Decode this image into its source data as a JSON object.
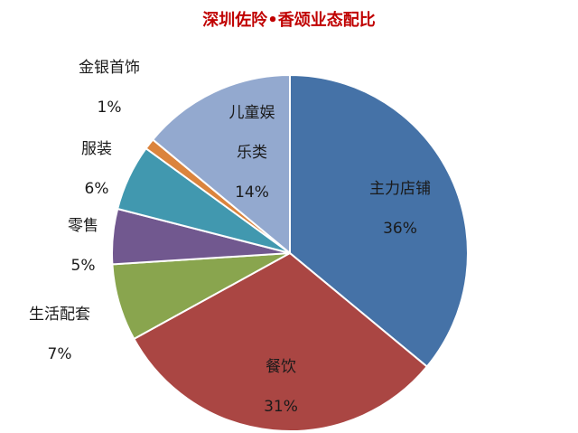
{
  "chart_data": {
    "type": "pie",
    "title": "深圳佐阾•香颂业态配比",
    "slices": [
      {
        "label": "主力店铺",
        "value": 36,
        "value_label": "36%",
        "color": "#4572a7"
      },
      {
        "label": "餐饮",
        "value": 31,
        "value_label": "31%",
        "color": "#aa4643"
      },
      {
        "label": "生活配套",
        "value": 7,
        "value_label": "7%",
        "color": "#89a54e"
      },
      {
        "label": "零售",
        "value": 5,
        "value_label": "5%",
        "color": "#71588f"
      },
      {
        "label": "服装",
        "value": 6,
        "value_label": "6%",
        "color": "#4198af"
      },
      {
        "label": "金银首饰",
        "value": 1,
        "value_label": "1%",
        "color": "#db843d"
      },
      {
        "label": "儿童娱乐类",
        "label_lines": [
          "儿童娱",
          "乐类"
        ],
        "value": 14,
        "value_label": "14%",
        "color": "#93a9cf"
      }
    ],
    "start_angle_deg": 0,
    "direction": "clockwise",
    "legend": "none"
  }
}
